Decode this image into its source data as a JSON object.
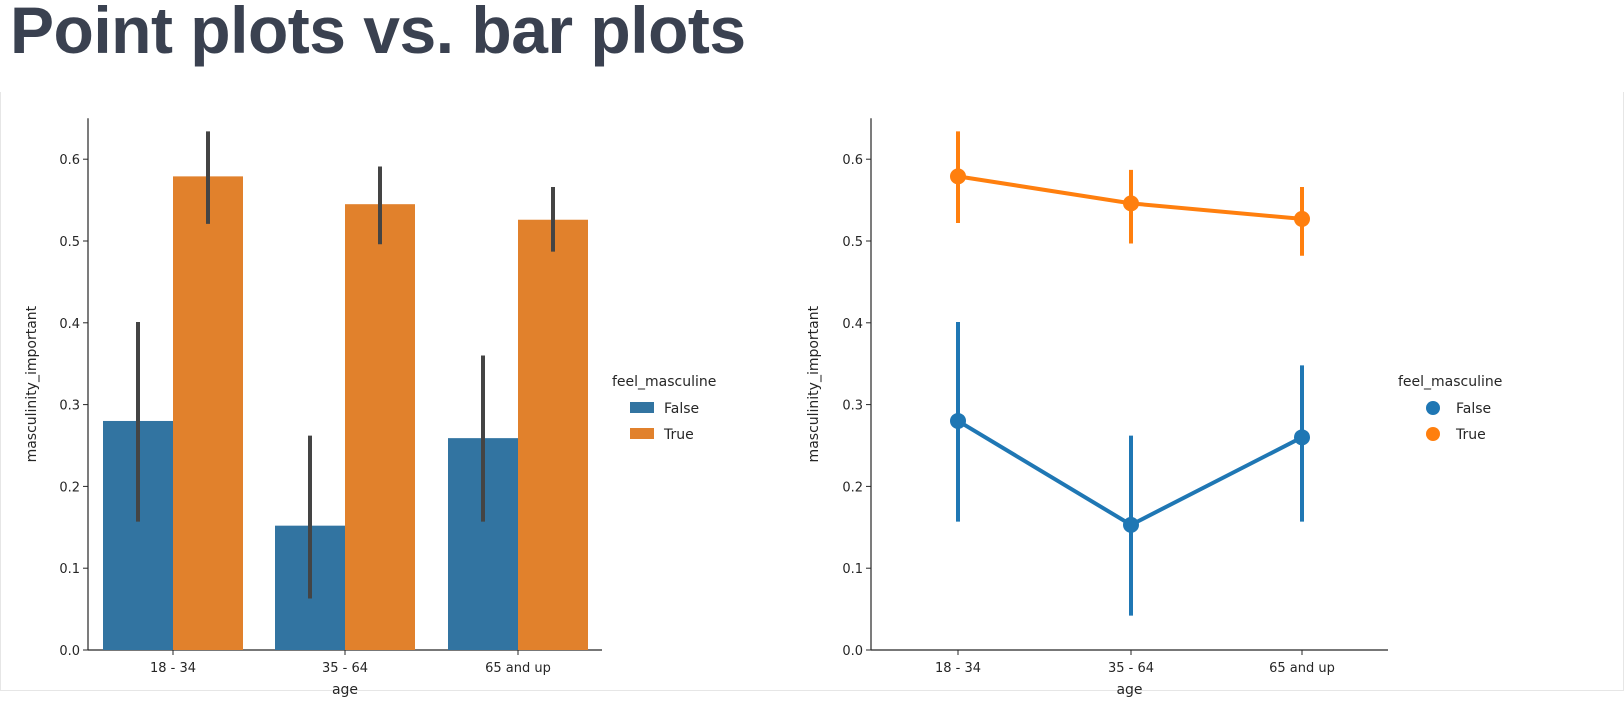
{
  "title": "Point plots vs. bar plots",
  "chart_data": [
    {
      "type": "bar",
      "categories": [
        "18 - 34",
        "35 - 64",
        "65 and up"
      ],
      "xlabel": "age",
      "ylabel": "masculinity_important",
      "ylim": [
        0,
        0.65
      ],
      "yticks": [
        "0.0",
        "0.1",
        "0.2",
        "0.3",
        "0.4",
        "0.5",
        "0.6"
      ],
      "grid": false,
      "legend": {
        "title": "feel_masculine",
        "placement": "right"
      },
      "series": [
        {
          "name": "False",
          "color": "#3274a1",
          "values": [
            0.28,
            0.152,
            0.259
          ],
          "ci": [
            [
              0.157,
              0.401
            ],
            [
              0.063,
              0.262
            ],
            [
              0.157,
              0.36
            ]
          ]
        },
        {
          "name": "True",
          "color": "#e1812c",
          "values": [
            0.579,
            0.545,
            0.526
          ],
          "ci": [
            [
              0.521,
              0.634
            ],
            [
              0.496,
              0.591
            ],
            [
              0.487,
              0.566
            ]
          ]
        }
      ]
    },
    {
      "type": "line",
      "categories": [
        "18 - 34",
        "35 - 64",
        "65 and up"
      ],
      "xlabel": "age",
      "ylabel": "masculinity_important",
      "ylim": [
        0,
        0.65
      ],
      "yticks": [
        "0.0",
        "0.1",
        "0.2",
        "0.3",
        "0.4",
        "0.5",
        "0.6"
      ],
      "grid": false,
      "legend": {
        "title": "feel_masculine",
        "placement": "right"
      },
      "series": [
        {
          "name": "False",
          "color": "#1f77b4",
          "values": [
            0.28,
            0.153,
            0.26
          ],
          "ci": [
            [
              0.157,
              0.401
            ],
            [
              0.042,
              0.262
            ],
            [
              0.157,
              0.348
            ]
          ]
        },
        {
          "name": "True",
          "color": "#ff7f0e",
          "values": [
            0.579,
            0.546,
            0.527
          ],
          "ci": [
            [
              0.522,
              0.634
            ],
            [
              0.497,
              0.587
            ],
            [
              0.482,
              0.566
            ]
          ]
        }
      ]
    }
  ]
}
